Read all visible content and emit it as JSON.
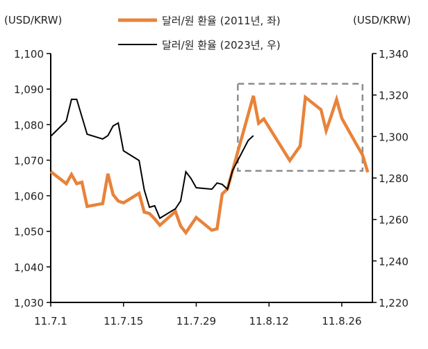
{
  "chart_data": {
    "type": "line",
    "title": "",
    "left_axis_label": "(USD/KRW)",
    "right_axis_label": "(USD/KRW)",
    "ylim_left": [
      1030,
      1100
    ],
    "ylim_right": [
      1220,
      1340
    ],
    "left_ticks": [
      "1,030",
      "1,040",
      "1,050",
      "1,060",
      "1,070",
      "1,080",
      "1,090",
      "1,100"
    ],
    "right_ticks": [
      "1,220",
      "1,240",
      "1,260",
      "1,280",
      "1,300",
      "1,320",
      "1,340"
    ],
    "x_ticks": [
      "11.7.1",
      "11.7.15",
      "11.7.29",
      "11.8.12",
      "11.8.26"
    ],
    "x_tick_dates": [
      "2011-07-01",
      "2011-07-15",
      "2011-07-29",
      "2011-08-12",
      "2011-08-26"
    ],
    "x_range": [
      "2011-07-01",
      "2011-09-01"
    ],
    "grid": false,
    "legend_position": "top-center",
    "colors": {
      "series_2011": "#E8833A",
      "series_2023": "#000000",
      "highlight_box": "#8C8C8C"
    },
    "series": [
      {
        "name": "달러/원 환율 (2011년, 좌)",
        "axis": "left",
        "points": [
          [
            "2011-07-01",
            1066.8
          ],
          [
            "2011-07-04",
            1063.4
          ],
          [
            "2011-07-05",
            1066.0
          ],
          [
            "2011-07-06",
            1063.4
          ],
          [
            "2011-07-07",
            1063.8
          ],
          [
            "2011-07-08",
            1057.0
          ],
          [
            "2011-07-11",
            1057.8
          ],
          [
            "2011-07-12",
            1066.2
          ],
          [
            "2011-07-13",
            1060.3
          ],
          [
            "2011-07-14",
            1058.5
          ],
          [
            "2011-07-15",
            1058.0
          ],
          [
            "2011-07-18",
            1060.7
          ],
          [
            "2011-07-19",
            1055.4
          ],
          [
            "2011-07-20",
            1055.0
          ],
          [
            "2011-07-21",
            1053.5
          ],
          [
            "2011-07-22",
            1051.7
          ],
          [
            "2011-07-25",
            1055.6
          ],
          [
            "2011-07-26",
            1051.5
          ],
          [
            "2011-07-27",
            1049.6
          ],
          [
            "2011-07-29",
            1053.9
          ],
          [
            "2011-08-01",
            1050.3
          ],
          [
            "2011-08-02",
            1050.7
          ],
          [
            "2011-08-03",
            1060.5
          ],
          [
            "2011-08-04",
            1061.9
          ],
          [
            "2011-08-09",
            1088.1
          ],
          [
            "2011-08-10",
            1080.4
          ],
          [
            "2011-08-11",
            1081.6
          ],
          [
            "2011-08-16",
            1069.9
          ],
          [
            "2011-08-18",
            1074.0
          ],
          [
            "2011-08-19",
            1087.7
          ],
          [
            "2011-08-22",
            1084.2
          ],
          [
            "2011-08-23",
            1078.3
          ],
          [
            "2011-08-24",
            1082.6
          ],
          [
            "2011-08-25",
            1087.1
          ],
          [
            "2011-08-26",
            1081.8
          ],
          [
            "2011-08-29",
            1074.0
          ],
          [
            "2011-08-30",
            1071.5
          ],
          [
            "2011-08-31",
            1066.6
          ]
        ]
      },
      {
        "name": "달러/원 환율 (2023년, 우)",
        "axis": "right",
        "points": [
          [
            "2023-07-01",
            1300.1
          ],
          [
            "2023-07-04",
            1307.5
          ],
          [
            "2023-07-05",
            1317.9
          ],
          [
            "2023-07-06",
            1317.9
          ],
          [
            "2023-07-08",
            1301.1
          ],
          [
            "2023-07-11",
            1298.8
          ],
          [
            "2023-07-12",
            1300.4
          ],
          [
            "2023-07-13",
            1305.1
          ],
          [
            "2023-07-14",
            1306.5
          ],
          [
            "2023-07-15",
            1293.1
          ],
          [
            "2023-07-18",
            1288.4
          ],
          [
            "2023-07-19",
            1274.3
          ],
          [
            "2023-07-20",
            1265.9
          ],
          [
            "2023-07-21",
            1266.6
          ],
          [
            "2023-07-22",
            1260.6
          ],
          [
            "2023-07-25",
            1265.2
          ],
          [
            "2023-07-26",
            1268.9
          ],
          [
            "2023-07-27",
            1283.0
          ],
          [
            "2023-07-28",
            1279.7
          ],
          [
            "2023-07-29",
            1275.3
          ],
          [
            "2023-08-01",
            1274.6
          ],
          [
            "2023-08-02",
            1277.6
          ],
          [
            "2023-08-03",
            1276.9
          ],
          [
            "2023-08-04",
            1274.6
          ],
          [
            "2023-08-05",
            1283.7
          ],
          [
            "2023-08-08",
            1298.1
          ],
          [
            "2023-08-09",
            1300.4
          ]
        ]
      }
    ],
    "highlight_box": {
      "x": [
        "2011-08-06",
        "2011-08-30"
      ],
      "y_left": [
        1067.0,
        1091.5
      ]
    }
  }
}
